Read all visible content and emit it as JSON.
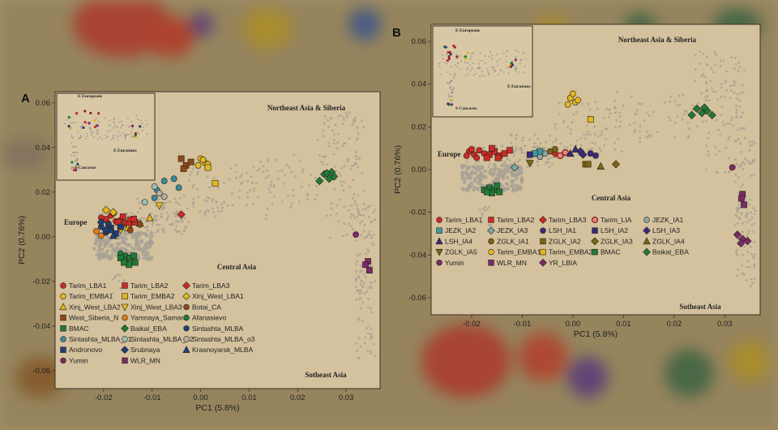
{
  "colors": {
    "panel_bg": "#d4c19d",
    "background": "#a08f68",
    "reference": "#a7a295",
    "frame": "#3a3020"
  },
  "panels": [
    {
      "id": "A",
      "label": "A",
      "region_labels": [
        "Northeast Asia & Siberia",
        "Europe",
        "Central Asia",
        "Sotheast Asia"
      ],
      "inset_labels": [
        "E Europeans",
        "E Eurasians",
        "S Caucasus"
      ]
    },
    {
      "id": "B",
      "label": "B",
      "region_labels": [
        "Northeast Asia & Siberia",
        "Europe",
        "Central Asia",
        "Sotheast Asia"
      ],
      "inset_labels": [
        "E Europeans",
        "E Eurasians",
        "S Caucasus"
      ]
    }
  ],
  "chart_data": [
    {
      "type": "scatter",
      "panel": "A",
      "xlabel": "PC1 (5.8%)",
      "ylabel": "PC2 (0.76%)",
      "xlim": [
        -0.03,
        0.037
      ],
      "ylim": [
        -0.068,
        0.065
      ],
      "xticks": [
        "-0.02",
        "-0.01",
        "0.00",
        "0.01",
        "0.02",
        "0.03"
      ],
      "xtick_values": [
        -0.02,
        -0.01,
        0.0,
        0.01,
        0.02,
        0.03
      ],
      "yticks": [
        "0.06",
        "0.04",
        "0.02",
        "0.00",
        "-0.02",
        "-0.04",
        "-0.06"
      ],
      "ytick_values": [
        0.06,
        0.04,
        0.02,
        0.0,
        -0.02,
        -0.04,
        -0.06
      ],
      "legend_position": "lower-left",
      "series": [
        {
          "name": "Tarim_LBA1",
          "color": "#cc2a2a",
          "shape": "circle",
          "points": [
            [
              -0.0195,
              0.008
            ],
            [
              -0.0185,
              0.0095
            ],
            [
              -0.0175,
              0.007
            ],
            [
              -0.0205,
              0.0085
            ],
            [
              -0.0165,
              0.0075
            ],
            [
              -0.019,
              0.006
            ],
            [
              -0.018,
              0.0105
            ]
          ]
        },
        {
          "name": "Tarim_LBA2",
          "color": "#cc2a2a",
          "shape": "square",
          "points": [
            [
              -0.0155,
              0.006
            ],
            [
              -0.0145,
              0.0075
            ],
            [
              -0.0135,
              0.0065
            ],
            [
              -0.016,
              0.009
            ],
            [
              -0.0148,
              0.0055
            ],
            [
              -0.017,
              0.0065
            ],
            [
              -0.0138,
              0.008
            ]
          ]
        },
        {
          "name": "Tarim_LBA3",
          "color": "#cc2a2a",
          "shape": "diamond",
          "points": [
            [
              -0.004,
              0.01
            ]
          ]
        },
        {
          "name": "Tarim_EMBA1",
          "color": "#e0b820",
          "shape": "circle",
          "points": [
            [
              0.0,
              0.035
            ],
            [
              0.001,
              0.033
            ],
            [
              -0.0005,
              0.032
            ],
            [
              0.0005,
              0.0345
            ],
            [
              0.0015,
              0.0325
            ]
          ]
        },
        {
          "name": "Tarim_EMBA2",
          "color": "#e0b820",
          "shape": "square",
          "points": [
            [
              0.003,
              0.024
            ],
            [
              0.0015,
              0.031
            ]
          ]
        },
        {
          "name": "Xinj_West_LBA1",
          "color": "#e0b820",
          "shape": "diamond",
          "points": [
            [
              -0.0195,
              0.012
            ],
            [
              -0.018,
              0.011
            ]
          ]
        },
        {
          "name": "Xinj_West_LBA2",
          "color": "#e0b820",
          "shape": "triangle",
          "points": [
            [
              -0.0125,
              0.006
            ],
            [
              -0.0105,
              0.0085
            ],
            [
              -0.015,
              0.004
            ]
          ]
        },
        {
          "name": "Xinj_West_LBA3",
          "color": "#e0b820",
          "shape": "triangle-down",
          "points": [
            [
              -0.0085,
              0.014
            ],
            [
              -0.0165,
              0.003
            ]
          ]
        },
        {
          "name": "Botai_CA",
          "color": "#8b4a1a",
          "shape": "circle",
          "points": [
            [
              -0.0145,
              0.003
            ],
            [
              -0.0125,
              0.0055
            ]
          ]
        },
        {
          "name": "West_Siberia_N",
          "color": "#8b4a1a",
          "shape": "square",
          "points": [
            [
              -0.004,
              0.035
            ],
            [
              -0.003,
              0.032
            ],
            [
              -0.002,
              0.0335
            ],
            [
              -0.0035,
              0.0305
            ]
          ]
        },
        {
          "name": "Yamnaya_Samara",
          "color": "#e07a1a",
          "shape": "circle",
          "points": [
            [
              -0.0215,
              0.0025
            ],
            [
              -0.0205,
              0.0005
            ]
          ]
        },
        {
          "name": "Afanasievo",
          "color": "#1f7a3a",
          "shape": "circle",
          "points": [
            [
              -0.0155,
              -0.0085
            ],
            [
              -0.0145,
              -0.0095
            ],
            [
              -0.0165,
              -0.0075
            ]
          ]
        },
        {
          "name": "BMAC",
          "color": "#1f7a3a",
          "shape": "square",
          "points": [
            [
              -0.0155,
              -0.0105
            ],
            [
              -0.0145,
              -0.0095
            ],
            [
              -0.0135,
              -0.0115
            ],
            [
              -0.0165,
              -0.0095
            ],
            [
              -0.0148,
              -0.0125
            ],
            [
              -0.0138,
              -0.0085
            ],
            [
              -0.0158,
              -0.0115
            ]
          ]
        },
        {
          "name": "Baikal_EBA",
          "color": "#1f7a3a",
          "shape": "diamond",
          "points": [
            [
              0.0255,
              0.028
            ],
            [
              0.0265,
              0.026
            ],
            [
              0.0275,
              0.027
            ],
            [
              0.0245,
              0.025
            ],
            [
              0.027,
              0.029
            ],
            [
              0.026,
              0.0285
            ]
          ]
        },
        {
          "name": "Sintashta_MLBA",
          "color": "#1f3f7a",
          "shape": "circle",
          "points": [
            [
              -0.0205,
              0.0045
            ],
            [
              -0.0195,
              0.002
            ],
            [
              -0.019,
              0.0055
            ]
          ]
        },
        {
          "name": "Sintashta_MLBA_o1",
          "color": "#3a8aa0",
          "shape": "circle",
          "points": [
            [
              -0.0095,
              0.0175
            ],
            [
              -0.0075,
              0.025
            ],
            [
              -0.009,
              0.021
            ],
            [
              -0.0055,
              0.026
            ],
            [
              -0.0045,
              0.022
            ]
          ]
        },
        {
          "name": "Sintashta_MLBA_o2",
          "color": "#9fbfb5",
          "shape": "circle",
          "points": [
            [
              -0.0115,
              0.0155
            ],
            [
              -0.0095,
              0.0225
            ]
          ]
        },
        {
          "name": "Sintashta_MLBA_o3",
          "color": "#b5b0a5",
          "shape": "circle",
          "points": [
            [
              -0.0075,
              0.018
            ],
            [
              -0.0085,
              0.0195
            ]
          ]
        },
        {
          "name": "Andronovo",
          "color": "#1f3f7a",
          "shape": "square",
          "points": [
            [
              -0.0185,
              0.004
            ],
            [
              -0.0175,
              0.0015
            ],
            [
              -0.0165,
              0.0045
            ]
          ]
        },
        {
          "name": "Srubnaya",
          "color": "#1f3f7a",
          "shape": "diamond",
          "points": [
            [
              -0.0205,
              0.0065
            ],
            [
              -0.0195,
              0.003
            ]
          ]
        },
        {
          "name": "Krasnoyarsk_MLBA",
          "color": "#1f3f7a",
          "shape": "triangle",
          "points": [
            [
              -0.018,
              0.0005
            ],
            [
              -0.0185,
              0.003
            ]
          ]
        },
        {
          "name": "Yumin",
          "color": "#7a2a6a",
          "shape": "circle",
          "points": [
            [
              0.032,
              0.001
            ]
          ]
        },
        {
          "name": "WLR_MN",
          "color": "#7a2a6a",
          "shape": "square",
          "points": [
            [
              0.0345,
              -0.011
            ],
            [
              0.034,
              -0.0125
            ],
            [
              0.0348,
              -0.015
            ]
          ]
        }
      ]
    },
    {
      "type": "scatter",
      "panel": "B",
      "xlabel": "PC1 (5.8%)",
      "ylabel": "PC2 (0.76%)",
      "xlim": [
        -0.028,
        0.037
      ],
      "ylim": [
        -0.068,
        0.068
      ],
      "xticks": [
        "-0.02",
        "-0.01",
        "0.00",
        "0.01",
        "0.02",
        "0.03"
      ],
      "xtick_values": [
        -0.02,
        -0.01,
        0.0,
        0.01,
        0.02,
        0.03
      ],
      "yticks": [
        "0.06",
        "0.04",
        "0.02",
        "0.00",
        "-0.02",
        "-0.04",
        "-0.06"
      ],
      "ytick_values": [
        0.06,
        0.04,
        0.02,
        0.0,
        -0.02,
        -0.04,
        -0.06
      ],
      "legend_position": "lower-left",
      "series": [
        {
          "name": "Tarim_LBA1",
          "color": "#cc2a2a",
          "shape": "circle",
          "points": [
            [
              -0.0205,
              0.0085
            ],
            [
              -0.0195,
              0.007
            ],
            [
              -0.0185,
              0.009
            ],
            [
              -0.021,
              0.0065
            ],
            [
              -0.0175,
              0.0075
            ],
            [
              -0.019,
              0.0055
            ],
            [
              -0.02,
              0.0095
            ]
          ]
        },
        {
          "name": "Tarim_LBA2",
          "color": "#cc2a2a",
          "shape": "square",
          "points": [
            [
              -0.0165,
              0.007
            ],
            [
              -0.0155,
              0.0085
            ],
            [
              -0.0145,
              0.0065
            ],
            [
              -0.0135,
              0.0075
            ],
            [
              -0.0125,
              0.009
            ],
            [
              -0.017,
              0.0055
            ],
            [
              -0.0148,
              0.0055
            ],
            [
              -0.016,
              0.01
            ]
          ]
        },
        {
          "name": "Tarim_LBA3",
          "color": "#cc2a2a",
          "shape": "diamond",
          "points": [
            [
              -0.0035,
              0.0075
            ]
          ]
        },
        {
          "name": "Tarim_LIA",
          "color": "#e08a80",
          "shape": "circle-ring",
          "points": [
            [
              -0.0015,
              0.008
            ],
            [
              -0.0025,
              0.0065
            ]
          ]
        },
        {
          "name": "JEZK_IA1",
          "color": "#8aa8a8",
          "shape": "circle",
          "points": [
            [
              -0.0055,
              0.0075
            ],
            [
              -0.0065,
              0.006
            ]
          ]
        },
        {
          "name": "JEZK_IA2",
          "color": "#3a9aa0",
          "shape": "square",
          "points": [
            [
              -0.0065,
              0.0085
            ],
            [
              -0.0075,
              0.0075
            ]
          ]
        },
        {
          "name": "JEZK_IA3",
          "color": "#7aa8a8",
          "shape": "diamond",
          "points": [
            [
              -0.0115,
              0.001
            ]
          ]
        },
        {
          "name": "LSH_IA1",
          "color": "#3a2a7a",
          "shape": "circle",
          "points": [
            [
              0.0035,
              0.0075
            ],
            [
              0.0045,
              0.0065
            ]
          ]
        },
        {
          "name": "LSH_IA2",
          "color": "#3a2a7a",
          "shape": "square",
          "points": [
            [
              -0.0085,
              0.007
            ]
          ]
        },
        {
          "name": "LSH_IA3",
          "color": "#3a2a7a",
          "shape": "diamond",
          "points": [
            [
              0.002,
              0.007
            ],
            [
              0.0015,
              0.0085
            ]
          ]
        },
        {
          "name": "LSH_IA4",
          "color": "#3a2a7a",
          "shape": "triangle",
          "points": [
            [
              0.0005,
              0.0095
            ],
            [
              -0.0005,
              0.0075
            ]
          ]
        },
        {
          "name": "ZGLK_IA1",
          "color": "#7a6418",
          "shape": "circle",
          "points": [
            [
              -0.0045,
              0.0085
            ],
            [
              -0.0035,
              0.0095
            ]
          ]
        },
        {
          "name": "ZGLK_IA2",
          "color": "#7a6418",
          "shape": "square",
          "points": [
            [
              0.0025,
              0.0025
            ],
            [
              0.003,
              0.0025
            ]
          ]
        },
        {
          "name": "ZGLK_IA3",
          "color": "#7a6418",
          "shape": "diamond",
          "points": [
            [
              0.0085,
              0.0025
            ]
          ]
        },
        {
          "name": "ZGLK_IA4",
          "color": "#7a6418",
          "shape": "triangle",
          "points": [
            [
              0.0055,
              0.0015
            ]
          ]
        },
        {
          "name": "ZGLK_IA5",
          "color": "#7a6418",
          "shape": "triangle-down",
          "points": [
            [
              -0.0085,
              0.003
            ]
          ]
        },
        {
          "name": "Tarim_EMBA1",
          "color": "#e0b820",
          "shape": "circle",
          "points": [
            [
              -0.0005,
              0.0335
            ],
            [
              0.0005,
              0.0315
            ],
            [
              -0.001,
              0.0305
            ],
            [
              0.0,
              0.0355
            ],
            [
              0.001,
              0.0325
            ]
          ]
        },
        {
          "name": "Tarim_EMBA2",
          "color": "#e0b820",
          "shape": "square",
          "points": [
            [
              0.0035,
              0.0235
            ]
          ]
        },
        {
          "name": "BMAC",
          "color": "#1f7a3a",
          "shape": "square",
          "points": [
            [
              -0.0165,
              -0.0085
            ],
            [
              -0.0155,
              -0.0095
            ],
            [
              -0.0145,
              -0.0105
            ],
            [
              -0.0175,
              -0.0095
            ],
            [
              -0.016,
              -0.011
            ],
            [
              -0.015,
              -0.0075
            ],
            [
              -0.017,
              -0.0105
            ]
          ]
        },
        {
          "name": "Baikal_EBA",
          "color": "#1f7a3a",
          "shape": "diamond",
          "points": [
            [
              0.0245,
              0.0285
            ],
            [
              0.0255,
              0.0265
            ],
            [
              0.0265,
              0.0275
            ],
            [
              0.0235,
              0.0255
            ],
            [
              0.026,
              0.029
            ],
            [
              0.0275,
              0.0255
            ]
          ]
        },
        {
          "name": "Yumin",
          "color": "#7a2a6a",
          "shape": "circle",
          "points": [
            [
              0.0315,
              0.001
            ]
          ]
        },
        {
          "name": "WLR_MN",
          "color": "#7a2a6a",
          "shape": "square",
          "points": [
            [
              0.0335,
              -0.0115
            ],
            [
              0.0333,
              -0.0135
            ],
            [
              0.0338,
              -0.0165
            ]
          ]
        },
        {
          "name": "YR_LBIA",
          "color": "#7a2a6a",
          "shape": "diamond",
          "points": [
            [
              0.0325,
              -0.0305
            ],
            [
              0.0335,
              -0.0325
            ],
            [
              0.0345,
              -0.0335
            ],
            [
              0.0332,
              -0.0345
            ]
          ]
        }
      ]
    }
  ]
}
